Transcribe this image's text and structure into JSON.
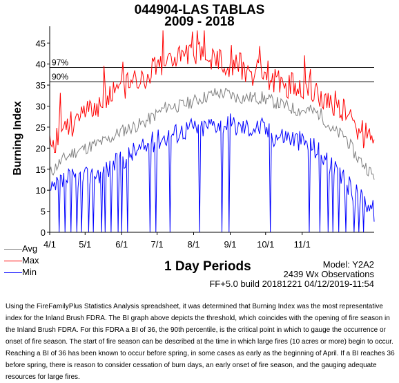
{
  "header": {
    "title": "044904-LAS TABLAS",
    "subtitle": "2009 - 2018"
  },
  "legend": [
    {
      "label": "Avg",
      "color": "#808080"
    },
    {
      "label": "Max",
      "color": "#ff0000"
    },
    {
      "label": "Min",
      "color": "#0000ff"
    }
  ],
  "info": {
    "model": "Model: Y2A2",
    "observations": "2439 Wx Observations",
    "build": "FF+5.0 build 20181221 04/12/2019-11:54"
  },
  "description": "Using the FireFamilyPlus Statistics Analysis spreadsheet, it was determined that Burning Index was the most representative index for the Inland Brush FDRA.  The BI graph above depicts the threshold, which coincides with the opening of fire season in the Inland Brush FDRA.  For this FDRA a BI of 36, the 90th percentile, is the critical point in which to gauge the occurrence or onset of fire season. The start of fire season can be described at the time in which large fires (10 acres or more) begin to occur. Reaching a BI of 36 has been known to occur before spring, in some cases as early as the beginning of April. If a BI reaches 36 before spring, there is reason to consider cessation of burn days, an early onset of fire season, and the gauging adequate resources for large fires.",
  "chart_data": {
    "type": "line",
    "title": "044904-LAS TABLAS",
    "subtitle": "2009 - 2018",
    "xlabel": "1 Day Periods",
    "ylabel": "Burning Index",
    "ylim": [
      0,
      48
    ],
    "yticks": [
      0,
      5,
      10,
      15,
      20,
      25,
      30,
      35,
      40,
      45
    ],
    "x_start": "4/1",
    "x_end": "12/1",
    "xticks": [
      "4/1",
      "5/1",
      "6/1",
      "7/1",
      "8/1",
      "9/1",
      "10/1",
      "11/1"
    ],
    "thresholds": [
      {
        "label": "97%",
        "value": 39.2
      },
      {
        "label": "90%",
        "value": 35.8
      }
    ],
    "grid": false,
    "series": [
      {
        "name": "Avg",
        "color": "#808080",
        "anchors": [
          [
            0,
            14
          ],
          [
            10,
            17
          ],
          [
            20,
            19
          ],
          [
            30,
            20
          ],
          [
            40,
            21
          ],
          [
            50,
            22
          ],
          [
            60,
            24
          ],
          [
            70,
            25
          ],
          [
            80,
            26
          ],
          [
            90,
            28
          ],
          [
            100,
            30
          ],
          [
            110,
            30
          ],
          [
            120,
            31
          ],
          [
            130,
            32
          ],
          [
            140,
            33
          ],
          [
            150,
            33
          ],
          [
            160,
            32
          ],
          [
            170,
            32
          ],
          [
            180,
            32
          ],
          [
            190,
            31
          ],
          [
            200,
            30
          ],
          [
            210,
            29
          ],
          [
            220,
            29
          ],
          [
            230,
            28
          ],
          [
            240,
            24
          ],
          [
            250,
            23
          ],
          [
            260,
            18
          ],
          [
            270,
            15
          ],
          [
            275,
            13
          ]
        ]
      },
      {
        "name": "Max",
        "color": "#ff0000",
        "anchors": [
          [
            0,
            19
          ],
          [
            10,
            25
          ],
          [
            20,
            26
          ],
          [
            30,
            28
          ],
          [
            40,
            29
          ],
          [
            50,
            33
          ],
          [
            60,
            34
          ],
          [
            70,
            36
          ],
          [
            80,
            37
          ],
          [
            90,
            40
          ],
          [
            100,
            41
          ],
          [
            110,
            42
          ],
          [
            120,
            42
          ],
          [
            130,
            43
          ],
          [
            140,
            41
          ],
          [
            150,
            40
          ],
          [
            160,
            40
          ],
          [
            170,
            38
          ],
          [
            180,
            38
          ],
          [
            190,
            36
          ],
          [
            200,
            35
          ],
          [
            210,
            35
          ],
          [
            220,
            34
          ],
          [
            230,
            32
          ],
          [
            240,
            31
          ],
          [
            250,
            29
          ],
          [
            260,
            25
          ],
          [
            270,
            22
          ],
          [
            275,
            20
          ]
        ]
      },
      {
        "name": "Min",
        "color": "#0000ff",
        "anchors": [
          [
            0,
            9
          ],
          [
            10,
            12
          ],
          [
            20,
            13
          ],
          [
            30,
            13
          ],
          [
            40,
            14
          ],
          [
            50,
            15
          ],
          [
            60,
            17
          ],
          [
            70,
            19
          ],
          [
            80,
            20
          ],
          [
            90,
            22
          ],
          [
            100,
            23
          ],
          [
            110,
            24
          ],
          [
            120,
            25
          ],
          [
            130,
            25
          ],
          [
            140,
            26
          ],
          [
            150,
            26
          ],
          [
            160,
            25
          ],
          [
            170,
            25
          ],
          [
            180,
            25
          ],
          [
            190,
            23
          ],
          [
            200,
            23
          ],
          [
            210,
            22
          ],
          [
            220,
            21
          ],
          [
            230,
            19
          ],
          [
            240,
            15
          ],
          [
            250,
            12
          ],
          [
            260,
            9
          ],
          [
            270,
            7
          ],
          [
            275,
            5
          ]
        ]
      }
    ]
  }
}
